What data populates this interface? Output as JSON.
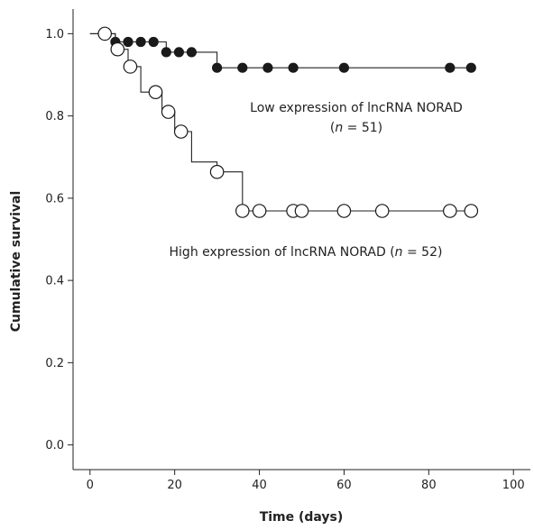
{
  "chart_data": {
    "type": "line",
    "title": "",
    "xlabel": "Time (days)",
    "ylabel": "Cumulative survival",
    "xlim": [
      -4,
      104
    ],
    "ylim": [
      -0.06,
      1.06
    ],
    "x_ticks": [
      0,
      20,
      40,
      60,
      80,
      100
    ],
    "x_tick_labels": [
      "0",
      "20",
      "40",
      "60",
      "80",
      "100"
    ],
    "y_ticks": [
      0.0,
      0.2,
      0.4,
      0.6,
      0.8,
      1.0
    ],
    "y_tick_labels": [
      "0.0",
      "0.2",
      "0.4",
      "0.6",
      "0.8",
      "1.0"
    ],
    "grid": false,
    "series": [
      {
        "marker": "filled-circle",
        "annotation": [
          "Low expression of lncRNA NORAD",
          "(n = 51)"
        ],
        "step": [
          [
            0,
            1.0
          ],
          [
            6,
            1.0
          ],
          [
            6,
            0.98
          ],
          [
            18,
            0.98
          ],
          [
            18,
            0.955
          ],
          [
            30,
            0.955
          ],
          [
            30,
            0.917
          ],
          [
            90,
            0.917
          ]
        ],
        "markers": [
          [
            6,
            0.98
          ],
          [
            9,
            0.98
          ],
          [
            12,
            0.98
          ],
          [
            15,
            0.98
          ],
          [
            18,
            0.955
          ],
          [
            21,
            0.955
          ],
          [
            24,
            0.955
          ],
          [
            30,
            0.917
          ],
          [
            36,
            0.917
          ],
          [
            42,
            0.917
          ],
          [
            48,
            0.917
          ],
          [
            60,
            0.917
          ],
          [
            85,
            0.917
          ],
          [
            90,
            0.917
          ]
        ]
      },
      {
        "marker": "open-circle",
        "annotation": [
          "High expression of lncRNA NORAD (n = 52)"
        ],
        "step": [
          [
            0,
            1.0
          ],
          [
            6,
            1.0
          ],
          [
            6,
            0.962
          ],
          [
            9,
            0.962
          ],
          [
            9,
            0.92
          ],
          [
            12,
            0.92
          ],
          [
            12,
            0.858
          ],
          [
            17,
            0.858
          ],
          [
            17,
            0.81
          ],
          [
            20,
            0.81
          ],
          [
            20,
            0.762
          ],
          [
            24,
            0.762
          ],
          [
            24,
            0.688
          ],
          [
            30,
            0.688
          ],
          [
            30,
            0.664
          ],
          [
            36,
            0.664
          ],
          [
            36,
            0.569
          ],
          [
            90,
            0.569
          ]
        ],
        "markers": [
          [
            3.5,
            1.0
          ],
          [
            6.5,
            0.962
          ],
          [
            9.5,
            0.92
          ],
          [
            15.5,
            0.858
          ],
          [
            18.5,
            0.81
          ],
          [
            21.5,
            0.762
          ],
          [
            30,
            0.664
          ],
          [
            36,
            0.569
          ],
          [
            40,
            0.569
          ],
          [
            48,
            0.569
          ],
          [
            50,
            0.569
          ],
          [
            60,
            0.569
          ],
          [
            69,
            0.569
          ],
          [
            85,
            0.569
          ],
          [
            90,
            0.569
          ]
        ]
      }
    ]
  }
}
